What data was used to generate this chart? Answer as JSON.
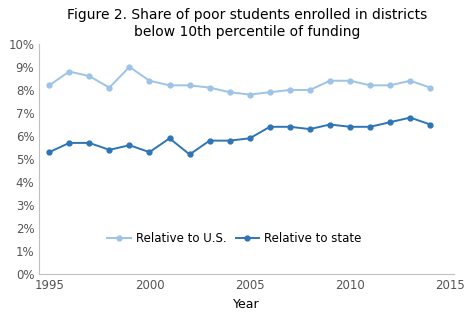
{
  "title_line1": "Figure 2. Share of poor students enrolled in districts",
  "title_line2": "below 10th percentile of funding",
  "xlabel": "Year",
  "background_color": "#ffffff",
  "years": [
    1995,
    1996,
    1997,
    1998,
    1999,
    2000,
    2001,
    2002,
    2003,
    2004,
    2005,
    2006,
    2007,
    2008,
    2009,
    2010,
    2011,
    2012,
    2013,
    2014
  ],
  "relative_us": [
    0.082,
    0.088,
    0.086,
    0.081,
    0.09,
    0.084,
    0.082,
    0.082,
    0.081,
    0.079,
    0.078,
    0.079,
    0.08,
    0.08,
    0.084,
    0.084,
    0.082,
    0.082,
    0.084,
    0.081
  ],
  "relative_state": [
    0.053,
    0.057,
    0.057,
    0.054,
    0.056,
    0.053,
    0.059,
    0.052,
    0.058,
    0.058,
    0.059,
    0.064,
    0.064,
    0.063,
    0.065,
    0.064,
    0.064,
    0.066,
    0.068,
    0.065
  ],
  "color_us": "#9DC3E6",
  "color_state": "#2E75B6",
  "ylim": [
    0,
    0.1
  ],
  "yticks": [
    0.0,
    0.01,
    0.02,
    0.03,
    0.04,
    0.05,
    0.06,
    0.07,
    0.08,
    0.09,
    0.1
  ],
  "xlim": [
    1994.5,
    2015.2
  ],
  "xticks": [
    1995,
    2000,
    2005,
    2010,
    2015
  ],
  "legend_us": "Relative to U.S.",
  "legend_state": "Relative to state",
  "marker_size": 3.5,
  "line_width": 1.4,
  "title_fontsize": 10,
  "axis_fontsize": 9,
  "tick_fontsize": 8.5,
  "legend_fontsize": 8.5,
  "spine_color": "#c0c0c0"
}
